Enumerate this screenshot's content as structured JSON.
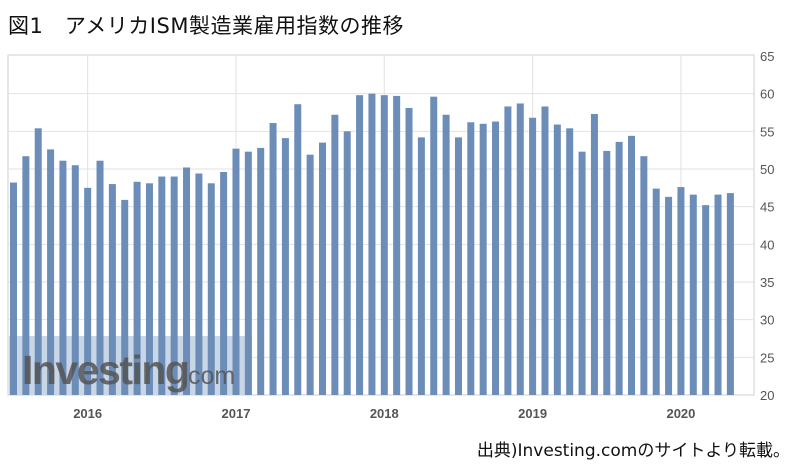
{
  "figure_title": "図1　アメリカISM製造業雇用指数の推移",
  "source_note": "出典)Investing.comのサイトより転載。",
  "watermark": {
    "brand": "Investing",
    "suffix": ".com"
  },
  "colors": {
    "bar": "#6b8db8",
    "bar_edge": "#4f729c",
    "grid": "#e2e2e2",
    "axis_text": "#555555",
    "watermark_band": "#c9d6e6",
    "watermark_text": "#555555"
  },
  "chart_data": {
    "type": "bar",
    "title": "",
    "xlabel": "",
    "ylabel": "",
    "ylim": [
      20,
      65
    ],
    "y_ticks": [
      20,
      25,
      30,
      35,
      40,
      45,
      50,
      55,
      60,
      65
    ],
    "y_axis_side": "right",
    "grid": true,
    "x_tick_labels": [
      {
        "label": "2016",
        "at_index": 6
      },
      {
        "label": "2017",
        "at_index": 18
      },
      {
        "label": "2018",
        "at_index": 30
      },
      {
        "label": "2019",
        "at_index": 42
      },
      {
        "label": "2020",
        "at_index": 54
      }
    ],
    "values": [
      48.2,
      51.7,
      55.4,
      52.6,
      51.1,
      50.5,
      47.5,
      51.1,
      48.0,
      45.9,
      48.3,
      48.1,
      49.0,
      49.0,
      50.2,
      49.4,
      48.1,
      49.6,
      52.7,
      52.3,
      52.8,
      56.1,
      54.1,
      58.6,
      51.9,
      53.5,
      57.2,
      55.0,
      59.8,
      60.0,
      59.8,
      59.7,
      58.1,
      54.2,
      59.6,
      57.2,
      54.2,
      56.2,
      56.0,
      56.3,
      58.3,
      58.7,
      56.8,
      58.3,
      55.9,
      55.4,
      52.3,
      57.3,
      52.4,
      53.6,
      54.4,
      51.7,
      47.4,
      46.3,
      47.6,
      46.6,
      45.2,
      46.6,
      46.8
    ]
  }
}
